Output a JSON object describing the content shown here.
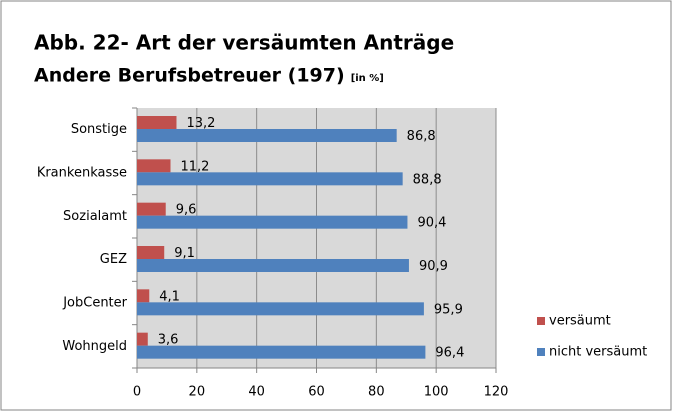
{
  "chart_data": {
    "type": "hbar",
    "title": "Abb. 22- Art der versäumten Anträge",
    "subtitle": "Andere Berufsbetreuer (197)",
    "unit": "[in %]",
    "categories": [
      "Sonstige",
      "Krankenkasse",
      "Sozialamt",
      "GEZ",
      "JobCenter",
      "Wohngeld"
    ],
    "series": [
      {
        "name": "versäumt",
        "color": "#c0504d",
        "values": [
          13.2,
          11.2,
          9.6,
          9.1,
          4.1,
          3.6
        ],
        "value_labels": [
          "13,2",
          "11,2",
          "9,6",
          "9,1",
          "4,1",
          "3,6"
        ]
      },
      {
        "name": "nicht versäumt",
        "color": "#4f81bd",
        "values": [
          86.8,
          88.8,
          90.4,
          90.9,
          95.9,
          96.4
        ],
        "value_labels": [
          "86,8",
          "88,8",
          "90,4",
          "90,9",
          "95,9",
          "96,4"
        ]
      }
    ],
    "xlim": [
      0,
      120
    ],
    "xticks": [
      0,
      20,
      40,
      60,
      80,
      100,
      120
    ],
    "grid": true,
    "legend": "right"
  }
}
